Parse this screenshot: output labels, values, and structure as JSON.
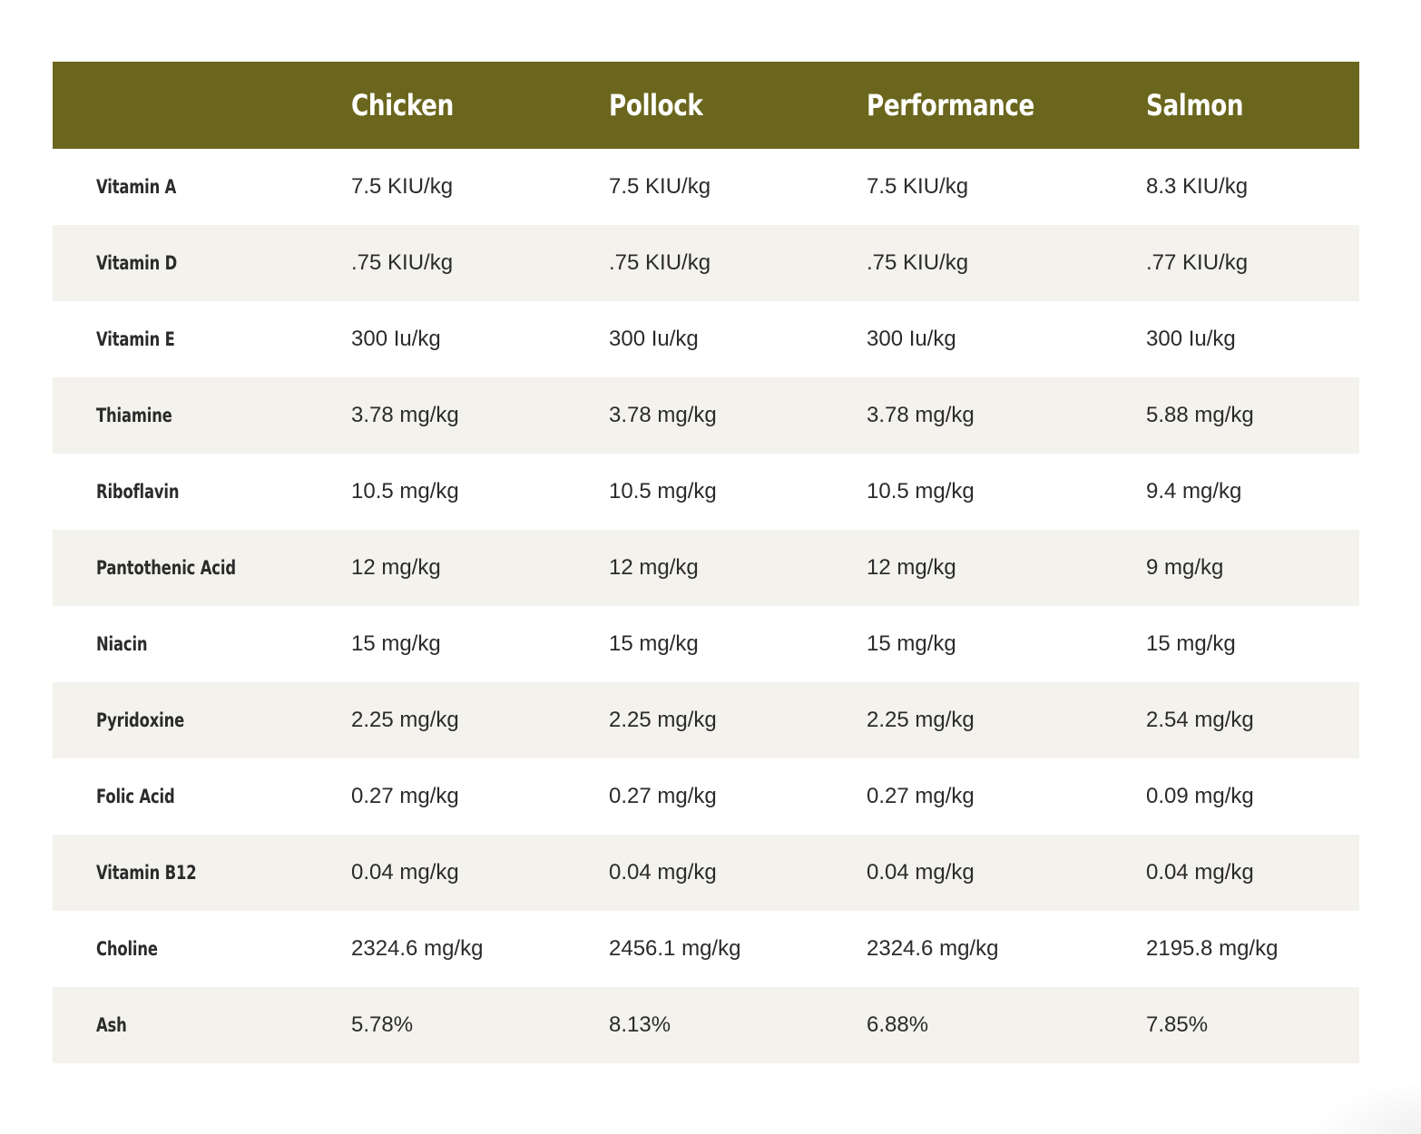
{
  "table": {
    "headers": [
      "",
      "Chicken",
      "Pollock",
      "Performance",
      "Salmon"
    ],
    "rows": [
      {
        "label": "Vitamin A",
        "values": [
          "7.5 KIU/kg",
          "7.5 KIU/kg",
          "7.5 KIU/kg",
          "8.3 KIU/kg"
        ]
      },
      {
        "label": "Vitamin D",
        "values": [
          ".75 KIU/kg",
          ".75 KIU/kg",
          ".75 KIU/kg",
          ".77 KIU/kg"
        ]
      },
      {
        "label": "Vitamin E",
        "values": [
          "300 Iu/kg",
          "300 Iu/kg",
          "300 Iu/kg",
          "300 Iu/kg"
        ]
      },
      {
        "label": "Thiamine",
        "values": [
          "3.78 mg/kg",
          "3.78 mg/kg",
          "3.78 mg/kg",
          "5.88 mg/kg"
        ]
      },
      {
        "label": "Riboflavin",
        "values": [
          "10.5 mg/kg",
          "10.5 mg/kg",
          "10.5 mg/kg",
          "9.4 mg/kg"
        ]
      },
      {
        "label": "Pantothenic Acid",
        "values": [
          "12 mg/kg",
          "12 mg/kg",
          "12 mg/kg",
          "9 mg/kg"
        ]
      },
      {
        "label": "Niacin",
        "values": [
          "15 mg/kg",
          "15 mg/kg",
          "15 mg/kg",
          "15 mg/kg"
        ]
      },
      {
        "label": "Pyridoxine",
        "values": [
          "2.25 mg/kg",
          "2.25 mg/kg",
          "2.25 mg/kg",
          "2.54 mg/kg"
        ]
      },
      {
        "label": "Folic Acid",
        "values": [
          "0.27 mg/kg",
          "0.27 mg/kg",
          "0.27 mg/kg",
          "0.09 mg/kg"
        ]
      },
      {
        "label": "Vitamin B12",
        "values": [
          "0.04 mg/kg",
          "0.04 mg/kg",
          "0.04 mg/kg",
          "0.04 mg/kg"
        ]
      },
      {
        "label": "Choline",
        "values": [
          "2324.6 mg/kg",
          "2456.1 mg/kg",
          "2324.6 mg/kg",
          "2195.8 mg/kg"
        ]
      },
      {
        "label": "Ash",
        "values": [
          "5.78%",
          "8.13%",
          "6.88%",
          "7.85%"
        ]
      }
    ]
  },
  "colors": {
    "header_background": "#6b661d",
    "alt_row_background": "#f4f2ed",
    "text": "#2b2b2b",
    "header_text": "#ffffff"
  }
}
